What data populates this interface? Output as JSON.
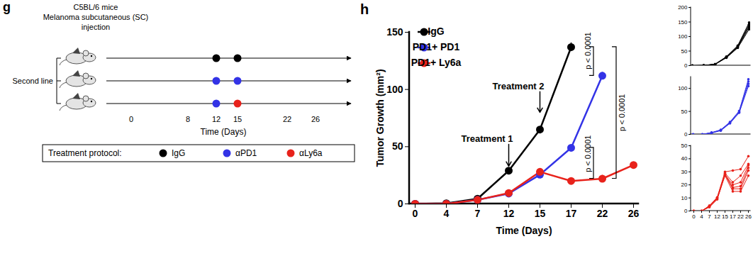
{
  "diagram": {
    "panel": "g",
    "header": [
      "C5BL/6 mice",
      "Melanoma subcutaneous (SC)",
      "injection"
    ],
    "group_label": "Second line",
    "axis": {
      "ticks": [
        0,
        8,
        12,
        15,
        22,
        26
      ],
      "label": "Time (Days)"
    },
    "rows": [
      {
        "doses": [
          {
            "day": 12,
            "treatment": "IgG"
          },
          {
            "day": 15,
            "treatment": "IgG"
          }
        ]
      },
      {
        "doses": [
          {
            "day": 12,
            "treatment": "αPD1"
          },
          {
            "day": 15,
            "treatment": "αPD1"
          }
        ]
      },
      {
        "doses": [
          {
            "day": 12,
            "treatment": "αPD1"
          },
          {
            "day": 15,
            "treatment": "αLy6a"
          }
        ]
      }
    ],
    "legend": {
      "title": "Treatment protocol:",
      "items": [
        {
          "name": "IgG",
          "color": "#000000"
        },
        {
          "name": "αPD1",
          "color": "#3333e6"
        },
        {
          "name": "αLy6a",
          "color": "#e8221b"
        }
      ]
    }
  },
  "chart_data": [
    {
      "type": "line",
      "panel": "h",
      "x": [
        0,
        4,
        7,
        12,
        15,
        17,
        22,
        26
      ],
      "xlabel": "Time (Days)",
      "ylabel": "Tumor Growth (mm²)",
      "ylim": [
        0,
        150
      ],
      "yticks": [
        0,
        50,
        100,
        150
      ],
      "grid": false,
      "legend": "top-left",
      "marker": "circle",
      "series": [
        {
          "name": "IgG",
          "color": "#000000",
          "values": [
            0,
            0.5,
            4.5,
            29,
            65,
            137,
            null,
            null
          ],
          "errors": [
            0,
            0.1,
            0.3,
            0.7,
            1.4,
            3.8,
            null,
            null
          ]
        },
        {
          "name": "PD1+ PD1",
          "color": "#3333e6",
          "values": [
            0,
            0,
            3.5,
            9,
            25.5,
            49,
            112,
            null
          ],
          "errors": [
            0,
            0,
            0.3,
            0.4,
            0.6,
            0.8,
            3,
            null
          ]
        },
        {
          "name": "PD1+ Ly6a",
          "color": "#e8221b",
          "values": [
            0,
            0,
            3.5,
            9.5,
            28,
            20,
            22,
            34
          ],
          "errors": [
            0,
            0,
            0.3,
            0.5,
            0.8,
            2.5,
            3,
            1.8
          ]
        }
      ],
      "annotations": [
        {
          "text": "Treatment 1",
          "x": 12,
          "y": 54,
          "y_end": 33
        },
        {
          "text": "Treatment 2",
          "x": 15,
          "y": 100,
          "y_end": 80
        }
      ],
      "brackets": [
        {
          "label": "p < 0.0001",
          "series": [
            "IgG",
            "PD1+ PD1"
          ],
          "days": [
            17,
            22
          ]
        },
        {
          "label": "p < 0.0001",
          "series": [
            "IgG",
            "PD1+ Ly6a"
          ],
          "days": [
            17,
            22
          ]
        },
        {
          "label": "p < 0.0001",
          "series": [
            "PD1+ PD1",
            "PD1+ Ly6a"
          ],
          "days": [
            17,
            22
          ]
        }
      ]
    },
    {
      "type": "line",
      "x": [
        0,
        4,
        7,
        12,
        15,
        17
      ],
      "color": "#000000",
      "marker": "circle",
      "ylim": [
        0,
        200
      ],
      "yticks": [
        0,
        50,
        100,
        150,
        200
      ],
      "tick_labels": "y",
      "series": [
        {
          "values": [
            0,
            0.3,
            4,
            27,
            61,
            125
          ]
        },
        {
          "values": [
            0,
            0.5,
            4.5,
            28,
            63,
            132
          ]
        },
        {
          "values": [
            0,
            0.5,
            5,
            29,
            65,
            137
          ]
        },
        {
          "values": [
            0,
            0.6,
            4.5,
            30,
            67,
            142
          ]
        },
        {
          "values": [
            0,
            0.8,
            5,
            31,
            69,
            148
          ]
        }
      ]
    },
    {
      "type": "line",
      "x": [
        0,
        4,
        7,
        12,
        15,
        17,
        22
      ],
      "color": "#3333e6",
      "marker": "circle",
      "ylim": [
        0,
        125
      ],
      "yticks": [
        0,
        50,
        100
      ],
      "tick_labels": "y",
      "series": [
        {
          "values": [
            0,
            0,
            3,
            8,
            24,
            47,
            105
          ]
        },
        {
          "values": [
            0,
            0,
            3.5,
            9,
            25,
            48,
            110
          ]
        },
        {
          "values": [
            0,
            0,
            3.5,
            9,
            26,
            50,
            115
          ]
        },
        {
          "values": [
            0,
            0,
            4,
            10,
            27,
            51,
            120
          ]
        }
      ]
    },
    {
      "type": "line",
      "x": [
        0,
        4,
        7,
        12,
        15,
        17,
        22,
        26
      ],
      "color": "#e8221b",
      "marker": "circle",
      "ylim": [
        0,
        50
      ],
      "yticks": [
        0,
        10,
        20,
        30,
        40,
        50
      ],
      "series": [
        {
          "values": [
            0,
            0,
            3,
            9,
            27,
            15,
            15,
            27
          ]
        },
        {
          "values": [
            0,
            0,
            3,
            9,
            28,
            17,
            17,
            31
          ]
        },
        {
          "values": [
            0,
            0,
            3.5,
            9.5,
            28,
            18,
            19,
            33
          ]
        },
        {
          "values": [
            0,
            0,
            3.5,
            10,
            28,
            20,
            22,
            35
          ]
        },
        {
          "values": [
            0,
            0,
            4,
            10,
            29,
            22,
            27,
            36
          ]
        },
        {
          "values": [
            0,
            0,
            4,
            10.5,
            30,
            31,
            32,
            42
          ]
        }
      ]
    }
  ]
}
